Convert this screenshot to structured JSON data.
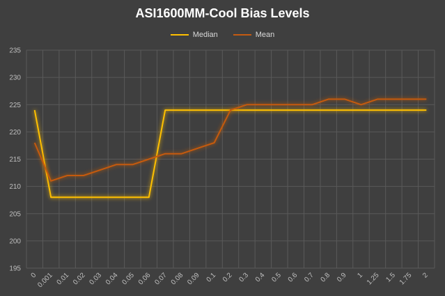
{
  "chart_data": {
    "type": "line",
    "title": "ASI1600MM-Cool Bias Levels",
    "xlabel": "",
    "ylabel": "",
    "categories": [
      "0",
      "0.001",
      "0.01",
      "0.02",
      "0.03",
      "0.04",
      "0.05",
      "0.06",
      "0.07",
      "0.08",
      "0.09",
      "0.1",
      "0.2",
      "0.3",
      "0.4",
      "0.5",
      "0.6",
      "0.7",
      "0.8",
      "0.9",
      "1",
      "1.25",
      "1.5",
      "1.75",
      "2"
    ],
    "y_ticks": [
      "195",
      "200",
      "205",
      "210",
      "215",
      "220",
      "225",
      "230",
      "235"
    ],
    "ylim": [
      195,
      235
    ],
    "grid": true,
    "legend": "top-center",
    "series": [
      {
        "name": "Median",
        "color": "#ffc000",
        "values": [
          224,
          208,
          208,
          208,
          208,
          208,
          208,
          208,
          224,
          224,
          224,
          224,
          224,
          224,
          224,
          224,
          224,
          224,
          224,
          224,
          224,
          224,
          224,
          224,
          224
        ]
      },
      {
        "name": "Mean",
        "color": "#c55a11",
        "values": [
          218,
          211,
          212,
          212,
          213,
          214,
          214,
          215,
          216,
          216,
          217,
          218,
          224,
          225,
          225,
          225,
          225,
          225,
          226,
          226,
          225,
          226,
          226,
          226,
          226
        ]
      }
    ]
  }
}
